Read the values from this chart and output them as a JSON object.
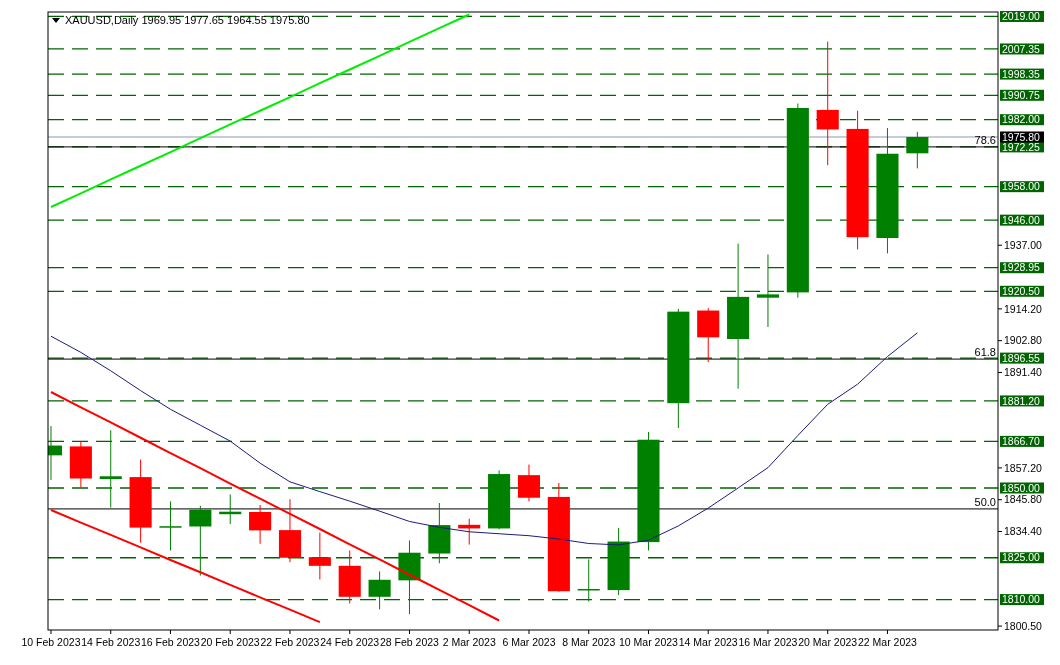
{
  "chart_data": {
    "type": "candlestick",
    "title": "XAUUSD,Daily  1969.95 1977.65 1964.55 1975.80",
    "categories": [
      "10 Feb 2023",
      null,
      "14 Feb 2023",
      null,
      "16 Feb 2023",
      null,
      "20 Feb 2023",
      null,
      "22 Feb 2023",
      null,
      "24 Feb 2023",
      null,
      "28 Feb 2023",
      null,
      "2 Mar 2023",
      null,
      "6 Mar 2023",
      null,
      "8 Mar 2023",
      null,
      "10 Mar 2023",
      null,
      "14 Mar 2023",
      null,
      "16 Mar 2023",
      null,
      "20 Mar 2023",
      null,
      "22 Mar 2023",
      null
    ],
    "ohlc": [
      [
        1861.7,
        1872.2,
        1852.9,
        1865.2
      ],
      [
        1864.9,
        1866.7,
        1850.2,
        1853.4
      ],
      [
        1853.2,
        1870.7,
        1843.0,
        1854.2
      ],
      [
        1853.9,
        1860.2,
        1830.4,
        1835.8
      ],
      [
        1836.1,
        1845.2,
        1827.6,
        1836.3
      ],
      [
        1836.2,
        1843.6,
        1818.6,
        1842.2
      ],
      [
        1840.6,
        1847.7,
        1837.1,
        1841.5
      ],
      [
        1841.4,
        1843.9,
        1830.0,
        1834.8
      ],
      [
        1834.9,
        1846.0,
        1823.4,
        1825.0
      ],
      [
        1825.2,
        1834.0,
        1817.2,
        1822.1
      ],
      [
        1822.1,
        1827.6,
        1808.6,
        1811.0
      ],
      [
        1811.0,
        1820.1,
        1806.5,
        1817.1
      ],
      [
        1816.9,
        1831.2,
        1804.8,
        1826.8
      ],
      [
        1826.5,
        1844.6,
        1823.0,
        1836.7
      ],
      [
        1836.8,
        1839.0,
        1829.7,
        1835.5
      ],
      [
        1835.5,
        1856.3,
        1835.2,
        1855.0
      ],
      [
        1854.6,
        1858.4,
        1845.2,
        1846.5
      ],
      [
        1846.8,
        1851.8,
        1812.8,
        1813.0
      ],
      [
        1813.6,
        1824.4,
        1809.3,
        1813.8
      ],
      [
        1813.4,
        1835.7,
        1811.6,
        1830.8
      ],
      [
        1830.6,
        1870.1,
        1827.6,
        1867.3
      ],
      [
        1880.4,
        1914.2,
        1871.5,
        1913.2
      ],
      [
        1913.6,
        1914.5,
        1895.1,
        1904.0
      ],
      [
        1903.4,
        1937.6,
        1885.6,
        1918.5
      ],
      [
        1918.2,
        1933.7,
        1907.7,
        1919.4
      ],
      [
        1920.1,
        1987.8,
        1918.2,
        1986.2
      ],
      [
        1985.5,
        2010.0,
        1965.7,
        1978.5
      ],
      [
        1978.7,
        1985.2,
        1935.5,
        1939.9
      ],
      [
        1939.6,
        1979.0,
        1934.1,
        1969.8
      ],
      [
        1969.95,
        1977.65,
        1964.55,
        1975.8
      ]
    ],
    "colors": [
      "#008000",
      "#ff0000",
      "#008000",
      "#ff0000",
      "#008000",
      "#008000",
      "#008000",
      "#ff0000",
      "#ff0000",
      "#ff0000",
      "#ff0000",
      "#008000",
      "#008000",
      "#008000",
      "#ff0000",
      "#008000",
      "#ff0000",
      "#ff0000",
      "#008000",
      "#008000",
      "#008000",
      "#008000",
      "#ff0000",
      "#008000",
      "#008000",
      "#008000",
      "#ff0000",
      "#ff0000",
      "#008000",
      "#008000"
    ],
    "series": [
      {
        "type": "line",
        "color": "#1c1c7a",
        "values": [
          1904.4,
          1898.6,
          1892.0,
          1884.9,
          1878.2,
          1872.5,
          1866.8,
          1858.9,
          1852.2,
          1848.7,
          1845.3,
          1841.7,
          1838.0,
          1835.9,
          1834.3,
          1833.6,
          1832.9,
          1831.7,
          1830.1,
          1829.6,
          1831.3,
          1836.4,
          1842.8,
          1850.0,
          1857.3,
          1868.8,
          1880.0,
          1887.2,
          1897.1,
          1905.6
        ]
      },
      {
        "type": "line",
        "color": "#00ee00",
        "values": [
          1950.7,
          1955.6,
          1960.6,
          1965.5,
          1970.4,
          1975.4,
          1980.3,
          1985.2,
          1990.1,
          1995.1,
          2000.0,
          2004.9,
          2009.9,
          2014.8,
          2019.7,
          null,
          null,
          null,
          null,
          null,
          null,
          null,
          null,
          null,
          null,
          null,
          null,
          null,
          null,
          null
        ]
      },
      {
        "type": "line",
        "color": "#ff0000",
        "values": [
          1884.4,
          1878.9,
          1873.5,
          1868.0,
          1862.5,
          1857.1,
          1851.6,
          1846.2,
          1840.7,
          1835.3,
          1829.8,
          1824.4,
          1818.9,
          1813.5,
          1808.0,
          1802.5,
          null,
          null,
          null,
          null,
          null,
          null,
          null,
          null,
          null,
          null,
          null,
          null,
          null,
          null
        ]
      },
      {
        "type": "line",
        "color": "#ff0000",
        "values": [
          1842.1,
          1837.6,
          1833.2,
          1828.7,
          1824.2,
          1819.8,
          1815.3,
          1810.8,
          1806.4,
          1801.9,
          null,
          null,
          null,
          null,
          null,
          null,
          null,
          null,
          null,
          null,
          null,
          null,
          null,
          null,
          null,
          null,
          null,
          null,
          null,
          null
        ]
      }
    ],
    "ylim": [
      1799.1,
      2020.6
    ],
    "yticks": [
      {
        "value": 1937,
        "label": "1937.00"
      },
      {
        "value": 1914.2,
        "label": "1914.20"
      },
      {
        "value": 1902.8,
        "label": "1902.80"
      },
      {
        "value": 1891.4,
        "label": "1891.40"
      },
      {
        "value": 1857.2,
        "label": "1857.20"
      },
      {
        "value": 1845.8,
        "label": "1845.80"
      },
      {
        "value": 1834.4,
        "label": "1834.40"
      },
      {
        "value": 1800.5,
        "label": "1800.50"
      }
    ],
    "ref_lines": [
      {
        "axis": "y",
        "value": 2019.0,
        "label": "2019.00",
        "color": "#006400",
        "line_style": "dashed"
      },
      {
        "axis": "y",
        "value": 2007.35,
        "label": "2007.35",
        "color": "#006400",
        "line_style": "dashed"
      },
      {
        "axis": "y",
        "value": 1998.35,
        "label": "1998.35",
        "color": "#006400",
        "line_style": "dashed"
      },
      {
        "axis": "y",
        "value": 1990.75,
        "label": "1990.75",
        "color": "#006400",
        "line_style": "dashed"
      },
      {
        "axis": "y",
        "value": 1982.0,
        "label": "1982.00",
        "color": "#006400",
        "line_style": "dashed"
      },
      {
        "axis": "y",
        "value": 1972.25,
        "label": "1972.25",
        "color": "#006400",
        "line_style": "dashed"
      },
      {
        "axis": "y",
        "value": 1958.0,
        "label": "1958.00",
        "color": "#006400",
        "line_style": "dashed"
      },
      {
        "axis": "y",
        "value": 1946.0,
        "label": "1946.00",
        "color": "#006400",
        "line_style": "dashed"
      },
      {
        "axis": "y",
        "value": 1928.95,
        "label": "1928.95",
        "color": "#006400",
        "line_style": "dashed"
      },
      {
        "axis": "y",
        "value": 1920.5,
        "label": "1920.50",
        "color": "#006400",
        "line_style": "dashed"
      },
      {
        "axis": "y",
        "value": 1896.55,
        "label": "1896.55",
        "color": "#006400",
        "line_style": "dashed"
      },
      {
        "axis": "y",
        "value": 1881.2,
        "label": "1881.20",
        "color": "#006400",
        "line_style": "dashed"
      },
      {
        "axis": "y",
        "value": 1866.7,
        "label": "1866.70",
        "color": "#006400",
        "line_style": "dashed"
      },
      {
        "axis": "y",
        "value": 1850.0,
        "label": "1850.00",
        "color": "#006400",
        "line_style": "dashed"
      },
      {
        "axis": "y",
        "value": 1825.0,
        "label": "1825.00",
        "color": "#006400",
        "line_style": "dashed"
      },
      {
        "axis": "y",
        "value": 1810.0,
        "label": "1810.00",
        "color": "#006400",
        "line_style": "dashed"
      },
      {
        "axis": "y",
        "value": 1975.8,
        "label": "1975.80",
        "color": "#8a9aab",
        "line_style": "solid"
      },
      {
        "axis": "y",
        "value": 1972.25,
        "color": "#000000",
        "line_style": "solid"
      },
      {
        "axis": "y",
        "value": 1896.2,
        "color": "#000000",
        "line_style": "solid"
      },
      {
        "axis": "y",
        "value": 1842.5,
        "color": "#000000",
        "line_style": "solid"
      }
    ],
    "annotations": [
      {
        "text": "78.6",
        "y": 1972.25
      },
      {
        "text": "61.8",
        "y": 1896.2
      },
      {
        "text": "50.0",
        "y": 1842.5
      }
    ]
  }
}
